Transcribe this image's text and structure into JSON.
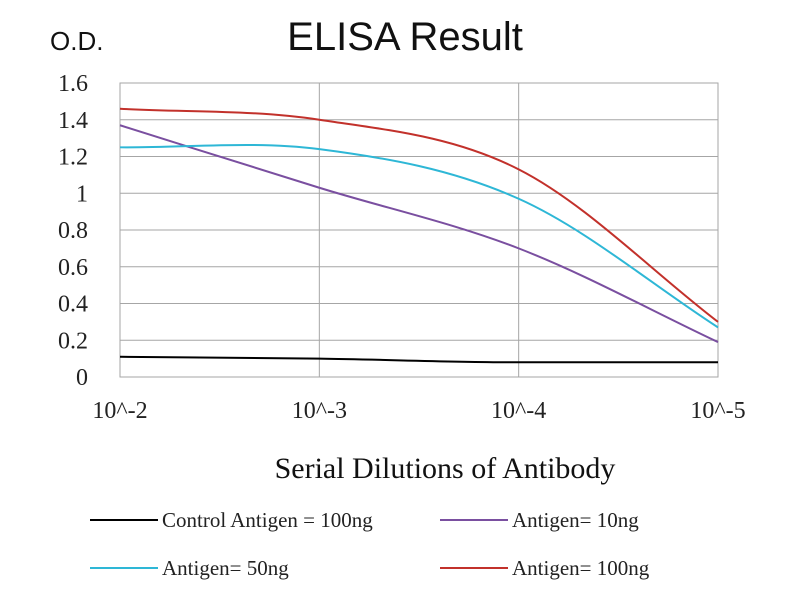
{
  "chart_data": {
    "type": "line",
    "title": "ELISA Result",
    "ylabel": "O.D.",
    "xlabel": "Serial Dilutions  of Antibody",
    "categories": [
      "10^-2",
      "10^-3",
      "10^-4",
      "10^-5"
    ],
    "ylim": [
      0,
      1.6
    ],
    "yticks": [
      "0",
      "0.2",
      "0.4",
      "0.6",
      "0.8",
      "1",
      "1.2",
      "1.4",
      "1.6"
    ],
    "grid": true,
    "legend_position": "bottom",
    "series": [
      {
        "name": "Control Antigen = 100ng",
        "color": "#000000",
        "values": [
          0.11,
          0.1,
          0.08,
          0.08
        ]
      },
      {
        "name": "Antigen= 10ng",
        "color": "#7a4fa0",
        "values": [
          1.37,
          1.03,
          0.7,
          0.19
        ]
      },
      {
        "name": "Antigen= 50ng",
        "color": "#2eb7d6",
        "values": [
          1.25,
          1.24,
          0.97,
          0.27
        ]
      },
      {
        "name": "Antigen= 100ng",
        "color": "#c2312b",
        "values": [
          1.46,
          1.4,
          1.13,
          0.3
        ]
      }
    ]
  }
}
